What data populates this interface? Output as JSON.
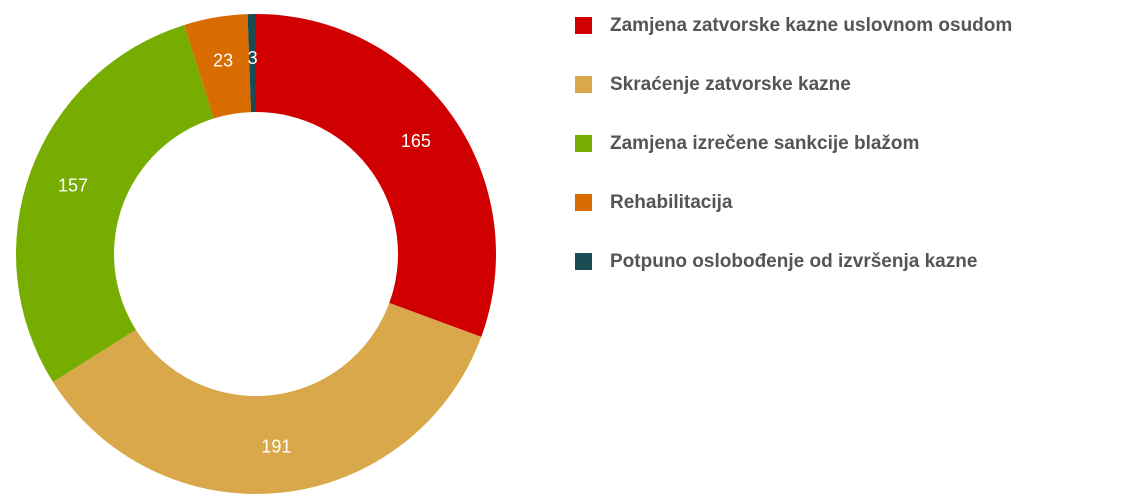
{
  "chart_data": {
    "type": "donut",
    "categories": [
      "Zamjena zatvorske kazne uslovnom osudom",
      "Skraćenje zatvorske kazne",
      "Zamjena izrečene sankcije blažom",
      "Rehabilitacija",
      "Potpuno oslobođenje od izvršenja kazne"
    ],
    "values": [
      165,
      191,
      157,
      23,
      3
    ],
    "colors": [
      "#d10000",
      "#d9a84a",
      "#76ad00",
      "#d96c00",
      "#1a4a52"
    ]
  }
}
